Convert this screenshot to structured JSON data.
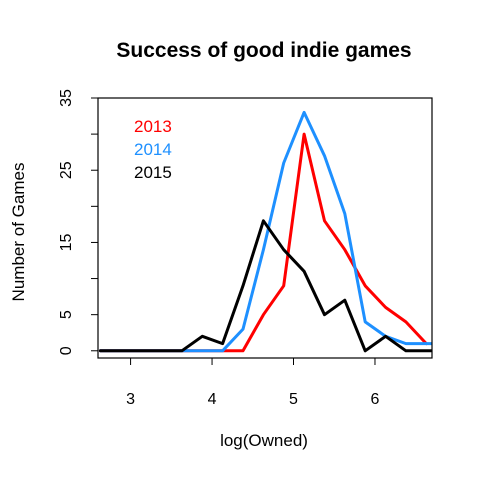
{
  "chart_data": {
    "type": "line",
    "title": "Success of good indie games",
    "xlabel": "log(Owned)",
    "ylabel": "Number of Games",
    "xlim": [
      2.6,
      6.7
    ],
    "ylim": [
      -1,
      35
    ],
    "x_ticks": [
      3,
      4,
      5,
      6
    ],
    "y_ticks": [
      0,
      5,
      15,
      25,
      35
    ],
    "y_minor_ticks": [
      10,
      20,
      30
    ],
    "legend_position": "top-left",
    "grid": false,
    "series": [
      {
        "name": "2013",
        "color": "#ff0000",
        "x": [
          2.63,
          2.88,
          3.13,
          3.38,
          3.63,
          3.88,
          4.13,
          4.38,
          4.63,
          4.88,
          5.13,
          5.38,
          5.63,
          5.88,
          6.13,
          6.38,
          6.63
        ],
        "y": [
          0,
          0,
          0,
          0,
          0,
          0,
          0,
          0,
          5,
          9,
          30,
          18,
          14,
          9,
          6,
          4,
          1
        ]
      },
      {
        "name": "2014",
        "color": "#1e90ff",
        "x": [
          2.63,
          2.88,
          3.13,
          3.38,
          3.63,
          3.88,
          4.13,
          4.38,
          4.63,
          4.88,
          5.13,
          5.38,
          5.63,
          5.88,
          6.13,
          6.38,
          6.63,
          6.7
        ],
        "y": [
          0,
          0,
          0,
          0,
          0,
          0,
          0,
          3,
          14,
          26,
          33,
          27,
          19,
          4,
          2,
          1,
          1,
          1
        ]
      },
      {
        "name": "2015",
        "color": "#000000",
        "x": [
          2.63,
          2.88,
          3.13,
          3.38,
          3.63,
          3.88,
          4.13,
          4.38,
          4.63,
          4.88,
          5.13,
          5.38,
          5.63,
          5.88,
          6.13,
          6.38,
          6.63,
          6.7
        ],
        "y": [
          0,
          0,
          0,
          0,
          0,
          2,
          1,
          9,
          18,
          14,
          11,
          5,
          7,
          0,
          2,
          0,
          0,
          0
        ]
      }
    ]
  }
}
